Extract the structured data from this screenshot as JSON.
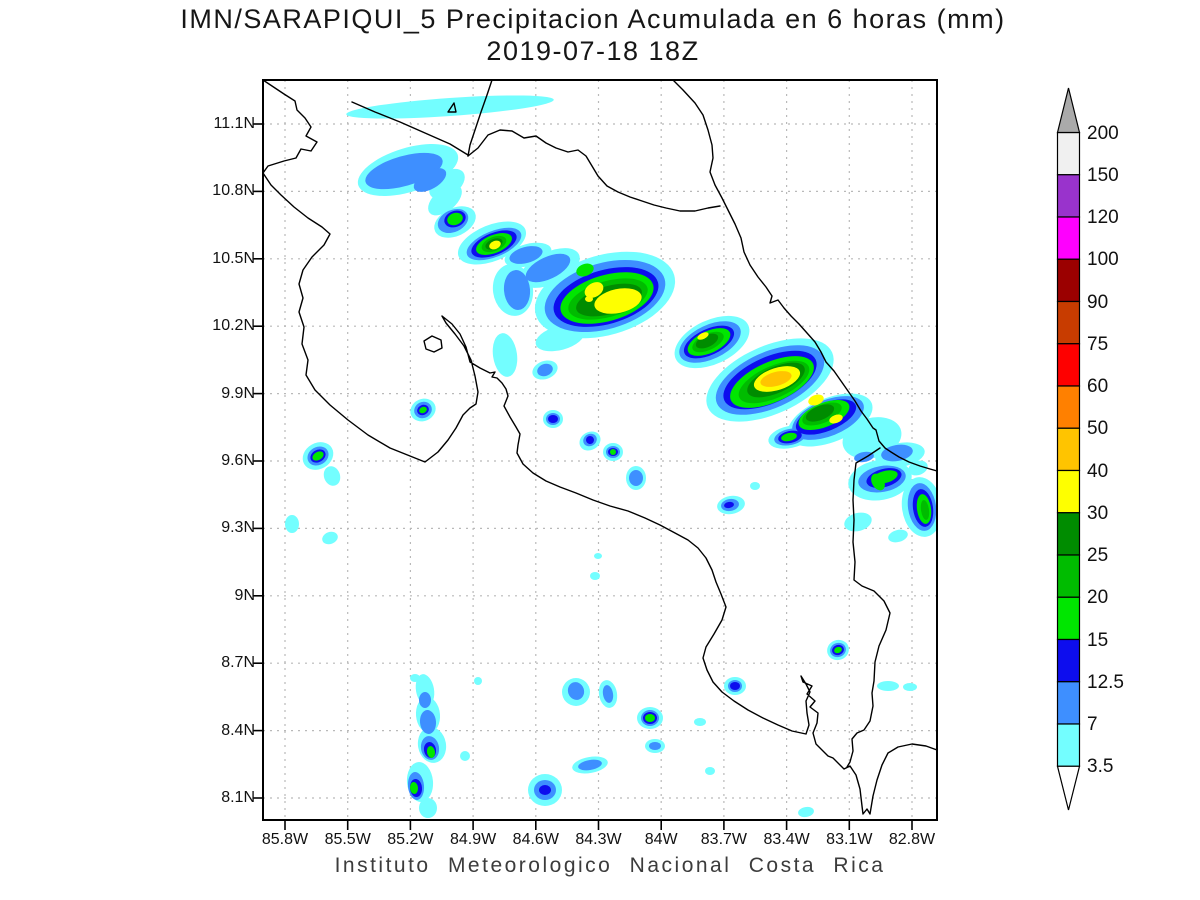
{
  "title": {
    "line1": "IMN/SARAPIQUI_5 Precipitacion Acumulada en 6 horas (mm)",
    "line2": "2019-07-18 18Z"
  },
  "footer": {
    "text": "Instituto Meteorologico Nacional Costa Rica"
  },
  "axes": {
    "lat_labels": [
      "11.1N",
      "10.8N",
      "10.5N",
      "10.2N",
      "9.9N",
      "9.6N",
      "9.3N",
      "9N",
      "8.7N",
      "8.4N",
      "8.1N"
    ],
    "lon_labels": [
      "85.8W",
      "85.5W",
      "85.2W",
      "84.9W",
      "84.6W",
      "84.3W",
      "84W",
      "83.7W",
      "83.4W",
      "83.1W",
      "82.8W"
    ]
  },
  "colorbar": {
    "labels_top_to_bottom": [
      "200",
      "150",
      "120",
      "100",
      "90",
      "75",
      "60",
      "50",
      "40",
      "30",
      "25",
      "20",
      "15",
      "12.5",
      "7",
      "3.5"
    ],
    "colors_top_to_bottom": [
      "#f0f0f0",
      "#9933cc",
      "#fe00fe",
      "#9b0000",
      "#c83c00",
      "#fe0000",
      "#ff8000",
      "#ffc400",
      "#feff00",
      "#008c00",
      "#00bc00",
      "#00e600",
      "#0d0dee",
      "#3e8fff",
      "#73feff"
    ],
    "over_arrow_color": "#aaaaaa",
    "under_arrow_color": "#ffffff"
  },
  "chart_data": {
    "type": "heatmap",
    "title": "IMN/SARAPIQUI_5 Precipitacion Acumulada en 6 horas (mm)",
    "subtitle": "2019-07-18 18Z",
    "units": "mm",
    "region": "Costa Rica",
    "x_tick_labels": [
      "85.8W",
      "85.5W",
      "85.2W",
      "84.9W",
      "84.6W",
      "84.3W",
      "84W",
      "83.7W",
      "83.4W",
      "83.1W",
      "82.8W"
    ],
    "y_tick_labels": [
      "11.1N",
      "10.8N",
      "10.5N",
      "10.2N",
      "9.9N",
      "9.6N",
      "9.3N",
      "9N",
      "8.7N",
      "8.4N",
      "8.1N"
    ],
    "xlim_lon_w": [
      85.9,
      82.7
    ],
    "ylim_lat_n": [
      8.0,
      11.3
    ],
    "grid": "dotted",
    "legend_position": "right colorbar",
    "contour_levels_mm": [
      3.5,
      7,
      12.5,
      15,
      20,
      25,
      30,
      40,
      50,
      60,
      75,
      90,
      100,
      120,
      150,
      200
    ],
    "max_band_reached_mm": "40-50",
    "source_label": "Instituto Meteorologico Nacional Costa Rica",
    "precipitation_cells": [
      {
        "lon_w": 85.23,
        "lat_n": 10.89,
        "peak_band_mm": "7-12.5",
        "note": "elongated band NW, Guanacaste"
      },
      {
        "lon_w": 84.99,
        "lat_n": 10.68,
        "peak_band_mm": "15-20"
      },
      {
        "lon_w": 84.8,
        "lat_n": 10.57,
        "peak_band_mm": "30-40",
        "note": "yellow core"
      },
      {
        "lon_w": 84.21,
        "lat_n": 10.31,
        "peak_band_mm": "30-40",
        "note": "largest yellow core of central band"
      },
      {
        "lon_w": 83.8,
        "lat_n": 10.16,
        "peak_band_mm": "30-40"
      },
      {
        "lon_w": 83.45,
        "lat_n": 9.97,
        "peak_band_mm": "40-50",
        "note": "gold maximum of the event"
      },
      {
        "lon_w": 83.26,
        "lat_n": 9.87,
        "peak_band_mm": "30-40"
      },
      {
        "lon_w": 85.64,
        "lat_n": 9.62,
        "peak_band_mm": "15-20"
      },
      {
        "lon_w": 85.14,
        "lat_n": 9.83,
        "peak_band_mm": "15-20"
      },
      {
        "lon_w": 82.93,
        "lat_n": 9.53,
        "peak_band_mm": "15-20",
        "note": "Caribbean coast cluster"
      },
      {
        "lon_w": 82.74,
        "lat_n": 9.39,
        "peak_band_mm": "20-25"
      },
      {
        "lon_w": 83.15,
        "lat_n": 8.76,
        "peak_band_mm": "15-20"
      },
      {
        "lon_w": 84.05,
        "lat_n": 8.46,
        "peak_band_mm": "15-20"
      },
      {
        "lon_w": 85.1,
        "lat_n": 8.3,
        "peak_band_mm": "15-20",
        "note": "southern Nicoya offshore chain"
      },
      {
        "lon_w": 84.56,
        "lat_n": 8.14,
        "peak_band_mm": "12.5-15"
      },
      {
        "lon_w": 85.05,
        "lat_n": 11.16,
        "peak_band_mm": "3.5-7",
        "note": "thin streak over Lake Nicaragua"
      }
    ]
  }
}
